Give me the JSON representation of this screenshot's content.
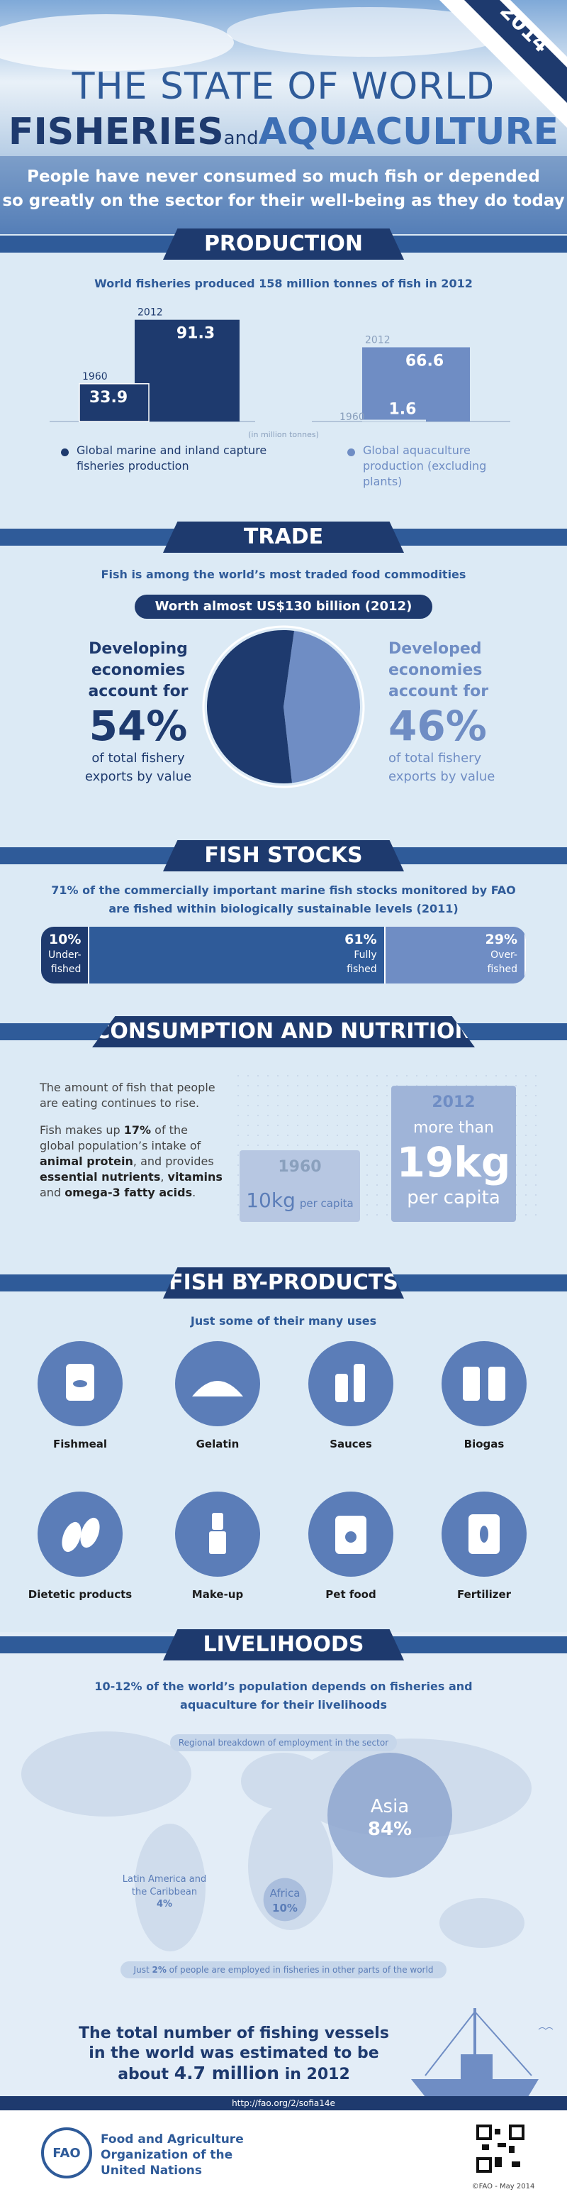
{
  "header": {
    "year": "2014",
    "title_line1": "THE STATE OF WORLD",
    "title_fisheries": "FISHERIES",
    "title_and": "and",
    "title_aquaculture": "AQUACULTURE",
    "subtitle_line1": "People have never consumed so much fish or depended",
    "subtitle_line2": "so greatly on the sector for their well-being as they do today"
  },
  "production": {
    "heading": "PRODUCTION",
    "subtitle": "World fisheries produced 158 million tonnes of fish in 2012",
    "unit_note": "(in million tonnes)",
    "groups": [
      {
        "legend": "Global marine and inland capture fisheries production",
        "color": "#1e3a6e",
        "bars": [
          {
            "year": "1960",
            "value": 33.9
          },
          {
            "year": "2012",
            "value": 91.3
          }
        ]
      },
      {
        "legend": "Global aquaculture production (excluding plants)",
        "color": "#6f8dc4",
        "bars": [
          {
            "year": "1960",
            "value": 1.6
          },
          {
            "year": "2012",
            "value": 66.6
          }
        ]
      }
    ]
  },
  "trade": {
    "heading": "TRADE",
    "subtitle": "Fish is among the world’s most traded food commodities",
    "badge": "Worth almost US$130 billion (2012)",
    "developing": {
      "lead_line1": "Developing",
      "lead_line2": "economies",
      "lead_line3": "account for",
      "share": {
        "value": 54,
        "label": "54%"
      },
      "tail_line1": "of total fishery",
      "tail_line2": "exports by value",
      "color": "#1e3a6e"
    },
    "developed": {
      "lead_line1": "Developed",
      "lead_line2": "economies",
      "lead_line3": "account for",
      "share": {
        "value": 46,
        "label": "46%"
      },
      "tail_line1": "of total fishery",
      "tail_line2": "exports by value",
      "color": "#6f8dc4"
    }
  },
  "fish_stocks": {
    "heading": "FISH STOCKS",
    "subtitle_line1": "71% of the commercially important marine fish stocks monitored by FAO",
    "subtitle_line2": "are fished within biologically sustainable levels (2011)",
    "segments": [
      {
        "share": {
          "value": 10,
          "label": "10%"
        },
        "label_line1": "Under-",
        "label_line2": "fished",
        "color": "#1e3a6e"
      },
      {
        "share": {
          "value": 61,
          "label": "61%"
        },
        "label_line1": "Fully",
        "label_line2": "fished",
        "color": "#2f5b99"
      },
      {
        "share": {
          "value": 29,
          "label": "29%"
        },
        "label_line1": "Over-",
        "label_line2": "fished",
        "color": "#6f8dc4"
      }
    ]
  },
  "consumption": {
    "heading": "CONSUMPTION AND NUTRITION",
    "paragraph1": "The amount of fish that people are eating continues to rise.",
    "paragraph2": [
      "Fish makes up ",
      "17%",
      " of the global population’s intake of ",
      "animal protein",
      ", and provides ",
      "essential nutrients",
      ", ",
      "vitamins",
      " and ",
      "omega-3 fatty acids",
      "."
    ],
    "then": {
      "year": "1960",
      "amount": {
        "value": 10,
        "label": "10kg"
      },
      "unit": "per capita"
    },
    "now": {
      "year": "2012",
      "prefix": "more than",
      "amount": {
        "value": 19,
        "label": "19kg"
      },
      "unit": "per capita"
    }
  },
  "by_products": {
    "heading": "FISH BY-PRODUCTS",
    "subtitle": "Just some of their many uses",
    "items": [
      "Fishmeal",
      "Gelatin",
      "Sauces",
      "Biogas",
      "Dietetic products",
      "Make-up",
      "Pet food",
      "Fertilizer"
    ]
  },
  "livelihoods": {
    "heading": "LIVELIHOODS",
    "subtitle_line1": "10-12% of the world’s population depends on fisheries and",
    "subtitle_line2": "aquaculture for their livelihoods",
    "map_caption": "Regional breakdown of employment in the sector",
    "regions": [
      {
        "name": "Asia",
        "share": {
          "value": 84,
          "label": "84%"
        }
      },
      {
        "name": "Africa",
        "share": {
          "value": 10,
          "label": "10%"
        }
      },
      {
        "name": "Latin America and the Caribbean",
        "share": {
          "value": 4,
          "label": "4%"
        }
      }
    ],
    "note": [
      "Just ",
      "2%",
      " of people are employed in fisheries in other parts of the world"
    ]
  },
  "vessels": {
    "line1": "The total number of fishing vessels",
    "line2": "in the world was estimated to be",
    "line3_prefix": "about ",
    "line3_bold": "4.7 million",
    "line3_suffix": " in 2012"
  },
  "footer": {
    "url": "http://fao.org/2/sofia14e",
    "org_line1": "Food and Agriculture",
    "org_line2": "Organization of the",
    "org_line3": "United Nations",
    "logo_text": "FAO",
    "credit": "©FAO - May 2014"
  }
}
